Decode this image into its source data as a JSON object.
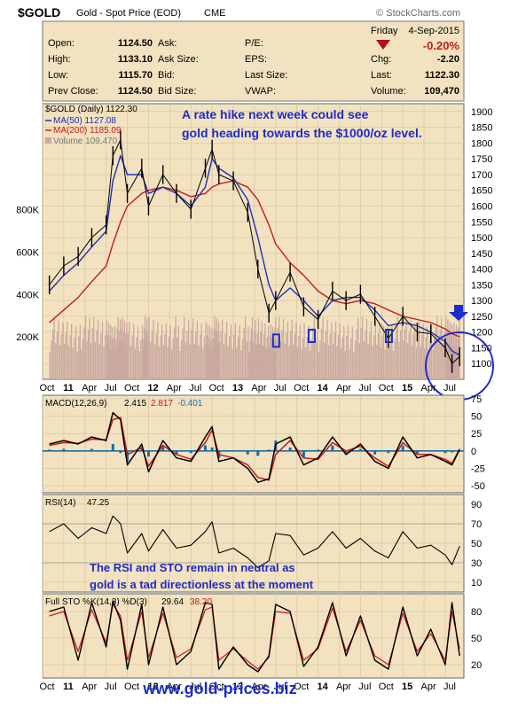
{
  "header": {
    "symbol": "$GOLD",
    "name": "Gold - Spot Price (EOD)",
    "exchange": "CME",
    "credit": "© StockCharts.com",
    "day": "Friday",
    "date": "4-Sep-2015",
    "change_pct": "-0.20%",
    "rows": [
      {
        "k1": "Open:",
        "v1": "1124.50",
        "k2": "Ask:",
        "v2": "",
        "k3": "P/E:",
        "v3": "",
        "k4": "",
        "v4": ""
      },
      {
        "k1": "High:",
        "v1": "1133.10",
        "k2": "Ask Size:",
        "v2": "",
        "k3": "EPS:",
        "v3": "",
        "k4": "Chg:",
        "v4": "-2.20"
      },
      {
        "k1": "Low:",
        "v1": "1115.70",
        "k2": "Bid:",
        "v2": "",
        "k3": "Last Size:",
        "v3": "",
        "k4": "Last:",
        "v4": "1122.30"
      },
      {
        "k1": "Prev Close:",
        "v1": "1124.50",
        "k2": "Bid Size:",
        "v2": "",
        "k3": "VWAP:",
        "v3": "",
        "k4": "Volume:",
        "v4": "109,470"
      }
    ]
  },
  "colors": {
    "panel_bg": "#f2e2c0",
    "price_bar": "#000000",
    "ma50": "#1f2fb5",
    "ma200": "#c61a1a",
    "volume": "#c9a9a0",
    "macd": "#000000",
    "signal": "#c61a1a",
    "histogram": "#1b6fa1",
    "annotation": "#1e2cc8",
    "down_arrow": "#b0101a"
  },
  "chart_data": [
    {
      "type": "line",
      "panel": "price",
      "legend": {
        "title": "$GOLD (Daily) 1122.30",
        "ma50": "MA(50) 1127.08",
        "ma200": "MA(200) 1185.09",
        "volume": "Volume 109,470"
      },
      "annotation": "A rate hike next week could see gold heading towards the $1000/oz level.",
      "y_ticks": [
        1100,
        1150,
        1200,
        1250,
        1300,
        1350,
        1400,
        1450,
        1500,
        1550,
        1600,
        1650,
        1700,
        1750,
        1800,
        1850,
        1900
      ],
      "ylim": [
        1050,
        1925
      ],
      "volume_ticks": [
        "200K",
        "400K",
        "600K",
        "800K"
      ],
      "volume_tick_values": [
        200,
        400,
        600,
        800
      ],
      "volume_lim": [
        0,
        1300
      ],
      "x_ticks": [
        "Oct",
        "11",
        "Apr",
        "Jul",
        "Oct",
        "12",
        "Apr",
        "Jul",
        "Oct",
        "13",
        "Apr",
        "Jul",
        "Oct",
        "14",
        "Apr",
        "Jul",
        "Oct",
        "15",
        "Apr",
        "Jul"
      ],
      "x": [
        2010.83,
        2011.0,
        2011.17,
        2011.33,
        2011.5,
        2011.58,
        2011.67,
        2011.75,
        2011.92,
        2012.0,
        2012.17,
        2012.33,
        2012.5,
        2012.67,
        2012.75,
        2012.83,
        2013.0,
        2013.17,
        2013.29,
        2013.42,
        2013.5,
        2013.67,
        2013.83,
        2014.0,
        2014.17,
        2014.33,
        2014.5,
        2014.67,
        2014.83,
        2015.0,
        2015.17,
        2015.33,
        2015.5,
        2015.58,
        2015.67
      ],
      "close": [
        1350,
        1410,
        1440,
        1500,
        1540,
        1760,
        1810,
        1640,
        1720,
        1600,
        1700,
        1640,
        1590,
        1720,
        1780,
        1700,
        1680,
        1580,
        1400,
        1260,
        1300,
        1390,
        1280,
        1240,
        1330,
        1300,
        1320,
        1250,
        1180,
        1250,
        1200,
        1195,
        1150,
        1100,
        1122
      ],
      "ma50": [
        1330,
        1380,
        1420,
        1470,
        1520,
        1680,
        1760,
        1700,
        1700,
        1640,
        1660,
        1640,
        1600,
        1660,
        1750,
        1720,
        1690,
        1620,
        1500,
        1350,
        1300,
        1340,
        1300,
        1250,
        1300,
        1310,
        1310,
        1270,
        1220,
        1230,
        1220,
        1200,
        1170,
        1140,
        1127
      ],
      "ma200": [
        1230,
        1270,
        1310,
        1360,
        1410,
        1480,
        1550,
        1600,
        1640,
        1650,
        1660,
        1650,
        1630,
        1640,
        1660,
        1670,
        1680,
        1660,
        1620,
        1540,
        1480,
        1420,
        1380,
        1330,
        1300,
        1290,
        1300,
        1290,
        1270,
        1250,
        1240,
        1230,
        1210,
        1195,
        1185
      ]
    },
    {
      "type": "line",
      "panel": "macd",
      "legend": {
        "label": "MACD(12,26,9)",
        "macd": "2.415",
        "signal": "2.817",
        "hist": "-0.401"
      },
      "y_ticks": [
        -50,
        -25,
        0,
        25,
        50,
        75
      ],
      "ylim": [
        -60,
        80
      ],
      "x": [
        2010.83,
        2011.0,
        2011.17,
        2011.33,
        2011.5,
        2011.58,
        2011.67,
        2011.75,
        2011.92,
        2012.0,
        2012.17,
        2012.33,
        2012.5,
        2012.67,
        2012.75,
        2012.83,
        2013.0,
        2013.17,
        2013.29,
        2013.42,
        2013.5,
        2013.67,
        2013.83,
        2014.0,
        2014.17,
        2014.33,
        2014.5,
        2014.67,
        2014.83,
        2015.0,
        2015.17,
        2015.33,
        2015.5,
        2015.58,
        2015.67
      ],
      "macd": [
        10,
        15,
        10,
        20,
        15,
        55,
        45,
        -20,
        10,
        -30,
        15,
        -10,
        -15,
        20,
        35,
        -15,
        -10,
        -25,
        -45,
        -40,
        10,
        20,
        -20,
        -10,
        20,
        -5,
        10,
        -15,
        -25,
        20,
        -10,
        -5,
        -15,
        -20,
        2
      ],
      "signal": [
        8,
        12,
        11,
        17,
        16,
        45,
        48,
        -5,
        5,
        -22,
        8,
        -5,
        -12,
        12,
        30,
        -5,
        -10,
        -20,
        -38,
        -42,
        -5,
        15,
        -10,
        -12,
        12,
        0,
        7,
        -10,
        -22,
        12,
        -5,
        -5,
        -12,
        -18,
        3
      ]
    },
    {
      "type": "line",
      "panel": "rsi",
      "legend": {
        "label": "RSI(14)",
        "value": "47.25"
      },
      "annotation": "The RSI and STO remain in neutral as gold is a tad directionless at the moment",
      "y_ticks": [
        10,
        30,
        50,
        70,
        90
      ],
      "ylim": [
        0,
        100
      ],
      "x": [
        2010.83,
        2011.0,
        2011.17,
        2011.33,
        2011.5,
        2011.58,
        2011.67,
        2011.75,
        2011.92,
        2012.0,
        2012.17,
        2012.33,
        2012.5,
        2012.67,
        2012.75,
        2012.83,
        2013.0,
        2013.17,
        2013.29,
        2013.42,
        2013.5,
        2013.67,
        2013.83,
        2014.0,
        2014.17,
        2014.33,
        2014.5,
        2014.67,
        2014.83,
        2015.0,
        2015.17,
        2015.33,
        2015.5,
        2015.58,
        2015.67
      ],
      "values": [
        62,
        70,
        55,
        66,
        60,
        78,
        70,
        40,
        60,
        42,
        64,
        45,
        48,
        62,
        72,
        40,
        45,
        35,
        25,
        32,
        60,
        58,
        38,
        45,
        62,
        45,
        55,
        42,
        35,
        62,
        45,
        48,
        38,
        28,
        47
      ]
    },
    {
      "type": "line",
      "panel": "sto",
      "legend": {
        "label": "Full STO %K(14,3) %D(3)",
        "k": "29.64",
        "d": "38.20"
      },
      "y_ticks": [
        20,
        50,
        80
      ],
      "ylim": [
        5,
        100
      ],
      "x_ticks": [
        "Oct",
        "11",
        "Apr",
        "Jul",
        "Oct",
        "12",
        "Apr",
        "Jul",
        "Oct",
        "13",
        "Apr",
        "Jul",
        "Oct",
        "14",
        "Apr",
        "Jul",
        "Oct",
        "15",
        "Apr",
        "Jul"
      ],
      "x": [
        2010.83,
        2011.0,
        2011.17,
        2011.33,
        2011.5,
        2011.58,
        2011.67,
        2011.75,
        2011.92,
        2012.0,
        2012.17,
        2012.33,
        2012.5,
        2012.67,
        2012.75,
        2012.83,
        2013.0,
        2013.17,
        2013.29,
        2013.42,
        2013.5,
        2013.67,
        2013.83,
        2014.0,
        2014.17,
        2014.33,
        2014.5,
        2014.67,
        2014.83,
        2015.0,
        2015.17,
        2015.33,
        2015.5,
        2015.58,
        2015.67
      ],
      "k": [
        80,
        85,
        25,
        90,
        40,
        92,
        70,
        15,
        88,
        20,
        85,
        20,
        35,
        90,
        88,
        15,
        40,
        20,
        12,
        30,
        88,
        80,
        18,
        40,
        90,
        30,
        75,
        25,
        15,
        85,
        30,
        60,
        20,
        90,
        30
      ],
      "d": [
        75,
        80,
        35,
        82,
        45,
        88,
        75,
        25,
        80,
        28,
        78,
        28,
        38,
        82,
        85,
        25,
        38,
        24,
        15,
        28,
        80,
        78,
        25,
        38,
        84,
        35,
        70,
        30,
        20,
        78,
        35,
        55,
        25,
        80,
        38
      ]
    }
  ],
  "footer": {
    "url": "www.gold-prices.biz"
  }
}
